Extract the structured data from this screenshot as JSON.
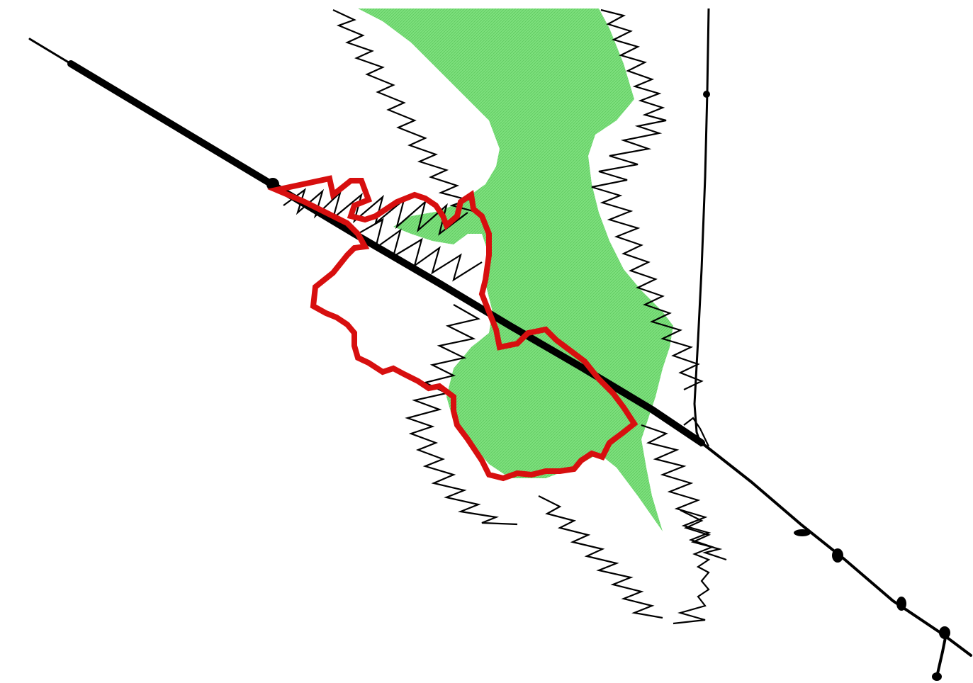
{
  "map": {
    "layers": [
      {
        "id": "green-area",
        "kind": "fill",
        "color": "#7de07d"
      },
      {
        "id": "zigzag-edges",
        "kind": "line",
        "color": "#000000"
      },
      {
        "id": "main-road",
        "kind": "line",
        "color": "#000000"
      },
      {
        "id": "north-road",
        "kind": "line",
        "color": "#000000"
      },
      {
        "id": "red-boundary",
        "kind": "outline",
        "color": "#d70f0f"
      }
    ]
  }
}
